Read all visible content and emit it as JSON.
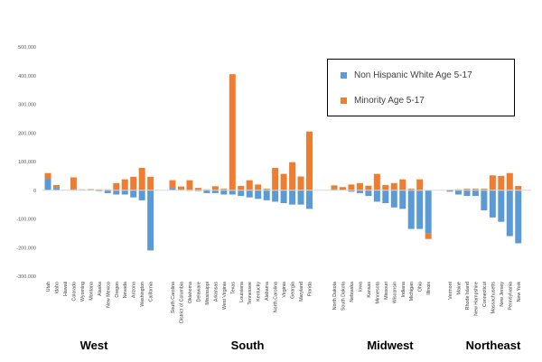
{
  "chart_data": {
    "type": "bar",
    "stacked": true,
    "ylim": [
      -300000,
      500000
    ],
    "y_ticks": [
      "500,000",
      "400,000",
      "300,000",
      "200,000",
      "100,000",
      "0",
      "-100,000",
      "-200,000",
      "-300,000"
    ],
    "grid": false,
    "legend_position": "top-right",
    "colors": {
      "series1": "#5b9bd5",
      "series2": "#ed7d31"
    },
    "series": [
      {
        "name": "Non Hispanic White Age 5-17"
      },
      {
        "name": "Minority Age 5-17"
      }
    ],
    "groups": [
      {
        "region": "West",
        "states": [
          {
            "name": "Utah",
            "white": 40000,
            "minority": 20000
          },
          {
            "name": "Idaho",
            "white": 8000,
            "minority": 10000
          },
          {
            "name": "Hawaii",
            "white": -1000,
            "minority": 1000
          },
          {
            "name": "Colorado",
            "white": 3000,
            "minority": 42000
          },
          {
            "name": "Wyoming",
            "white": 2000,
            "minority": 1000
          },
          {
            "name": "Montana",
            "white": 3000,
            "minority": 1000
          },
          {
            "name": "Alaska",
            "white": -3000,
            "minority": 3000
          },
          {
            "name": "New Mexico",
            "white": -10000,
            "minority": 3000
          },
          {
            "name": "Oregon",
            "white": -15000,
            "minority": 25000
          },
          {
            "name": "Nevada",
            "white": -15000,
            "minority": 38000
          },
          {
            "name": "Arizona",
            "white": -25000,
            "minority": 47000
          },
          {
            "name": "Washington",
            "white": -35000,
            "minority": 78000
          },
          {
            "name": "California",
            "white": -210000,
            "minority": 47000
          }
        ]
      },
      {
        "region": "South",
        "states": [
          {
            "name": "South Carolina",
            "white": 8000,
            "minority": 27000
          },
          {
            "name": "District of Columbia",
            "white": 3000,
            "minority": 10000
          },
          {
            "name": "Oklahoma",
            "white": -2000,
            "minority": 35000
          },
          {
            "name": "Delaware",
            "white": -3000,
            "minority": 8000
          },
          {
            "name": "Mississippi",
            "white": -10000,
            "minority": 3000
          },
          {
            "name": "Arkansas",
            "white": -10000,
            "minority": 14000
          },
          {
            "name": "West Virginia",
            "white": -15000,
            "minority": 5000
          },
          {
            "name": "Texas",
            "white": -15000,
            "minority": 405000
          },
          {
            "name": "Louisiana",
            "white": -20000,
            "minority": 15000
          },
          {
            "name": "Tennessee",
            "white": -25000,
            "minority": 35000
          },
          {
            "name": "Kentucky",
            "white": -30000,
            "minority": 20000
          },
          {
            "name": "Alabama",
            "white": -35000,
            "minority": 5000
          },
          {
            "name": "North Carolina",
            "white": -40000,
            "minority": 78000
          },
          {
            "name": "Virginia",
            "white": -45000,
            "minority": 57000
          },
          {
            "name": "Georgia",
            "white": -50000,
            "minority": 98000
          },
          {
            "name": "Maryland",
            "white": -50000,
            "minority": 48000
          },
          {
            "name": "Florida",
            "white": -65000,
            "minority": 205000
          }
        ]
      },
      {
        "region": "Midwest",
        "states": [
          {
            "name": "North Dakota",
            "white": 3000,
            "minority": 14000
          },
          {
            "name": "South Dakota",
            "white": 2000,
            "minority": 9000
          },
          {
            "name": "Nebraska",
            "white": -5000,
            "minority": 20000
          },
          {
            "name": "Iowa",
            "white": -10000,
            "minority": 25000
          },
          {
            "name": "Kansas",
            "white": -20000,
            "minority": 16000
          },
          {
            "name": "Minnesota",
            "white": -40000,
            "minority": 57000
          },
          {
            "name": "Missouri",
            "white": -45000,
            "minority": 18000
          },
          {
            "name": "Wisconsin",
            "white": -60000,
            "minority": 25000
          },
          {
            "name": "Indiana",
            "white": -65000,
            "minority": 38000
          },
          {
            "name": "Michigan",
            "white": -135000,
            "minority": 5000
          },
          {
            "name": "Ohio",
            "white": -135000,
            "minority": 38000
          },
          {
            "name": "Illinois",
            "white": -150000,
            "minority": -20000
          }
        ]
      },
      {
        "region": "Northeast",
        "states": [
          {
            "name": "Vermont",
            "white": -5000,
            "minority": 2000
          },
          {
            "name": "Maine",
            "white": -15000,
            "minority": 3000
          },
          {
            "name": "Rhode Island",
            "white": -20000,
            "minority": 5000
          },
          {
            "name": "New Hampshire",
            "white": -20000,
            "minority": 5000
          },
          {
            "name": "Connecticut",
            "white": -70000,
            "minority": 5000
          },
          {
            "name": "Massachusetts",
            "white": -95000,
            "minority": 52000
          },
          {
            "name": "New Jersey",
            "white": -110000,
            "minority": 50000
          },
          {
            "name": "Pennsylvania",
            "white": -160000,
            "minority": 60000
          },
          {
            "name": "New York",
            "white": -185000,
            "minority": 15000
          }
        ]
      }
    ]
  }
}
